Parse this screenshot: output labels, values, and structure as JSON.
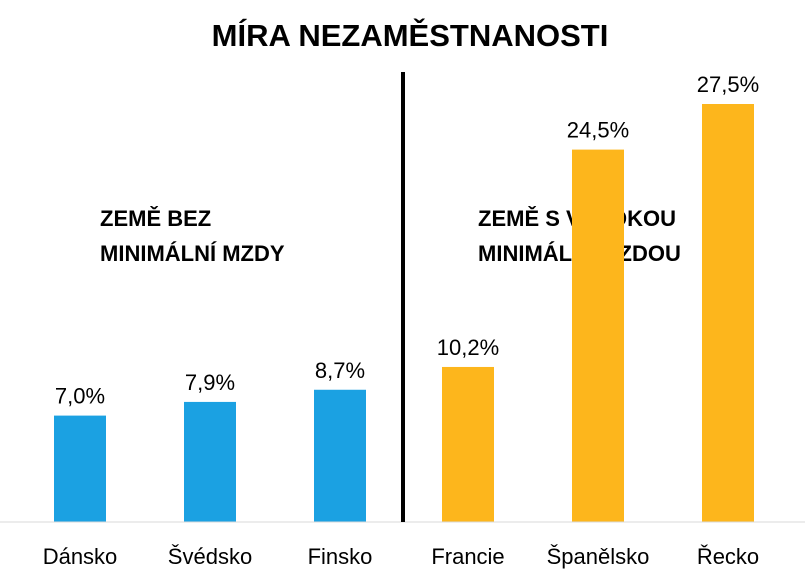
{
  "chart_data": {
    "type": "bar",
    "title": "MÍRA NEZAMĚSTNANOSTI",
    "categories": [
      "Dánsko",
      "Švédsko",
      "Finsko",
      "Francie",
      "Španělsko",
      "Řecko"
    ],
    "values": [
      7.0,
      7.9,
      8.7,
      10.2,
      24.5,
      27.5
    ],
    "value_labels": [
      "7,0%",
      "7,9%",
      "8,7%",
      "10,2%",
      "24,5%",
      "27,5%"
    ],
    "groups": [
      {
        "label_line1": "ZEMĚ BEZ",
        "label_line2": "MINIMÁLNÍ MZDY",
        "color": "#1BA1E2",
        "members": [
          0,
          1,
          2
        ]
      },
      {
        "label_line1": "ZEMĚ S VYSOKOU",
        "label_line2": "MINIMÁLNÍ MZDOU",
        "color": "#FDB61C",
        "members": [
          3,
          4,
          5
        ]
      }
    ],
    "xlabel": "",
    "ylabel": "",
    "ylim": [
      0,
      27.5
    ],
    "grid": false,
    "legend": "none"
  }
}
